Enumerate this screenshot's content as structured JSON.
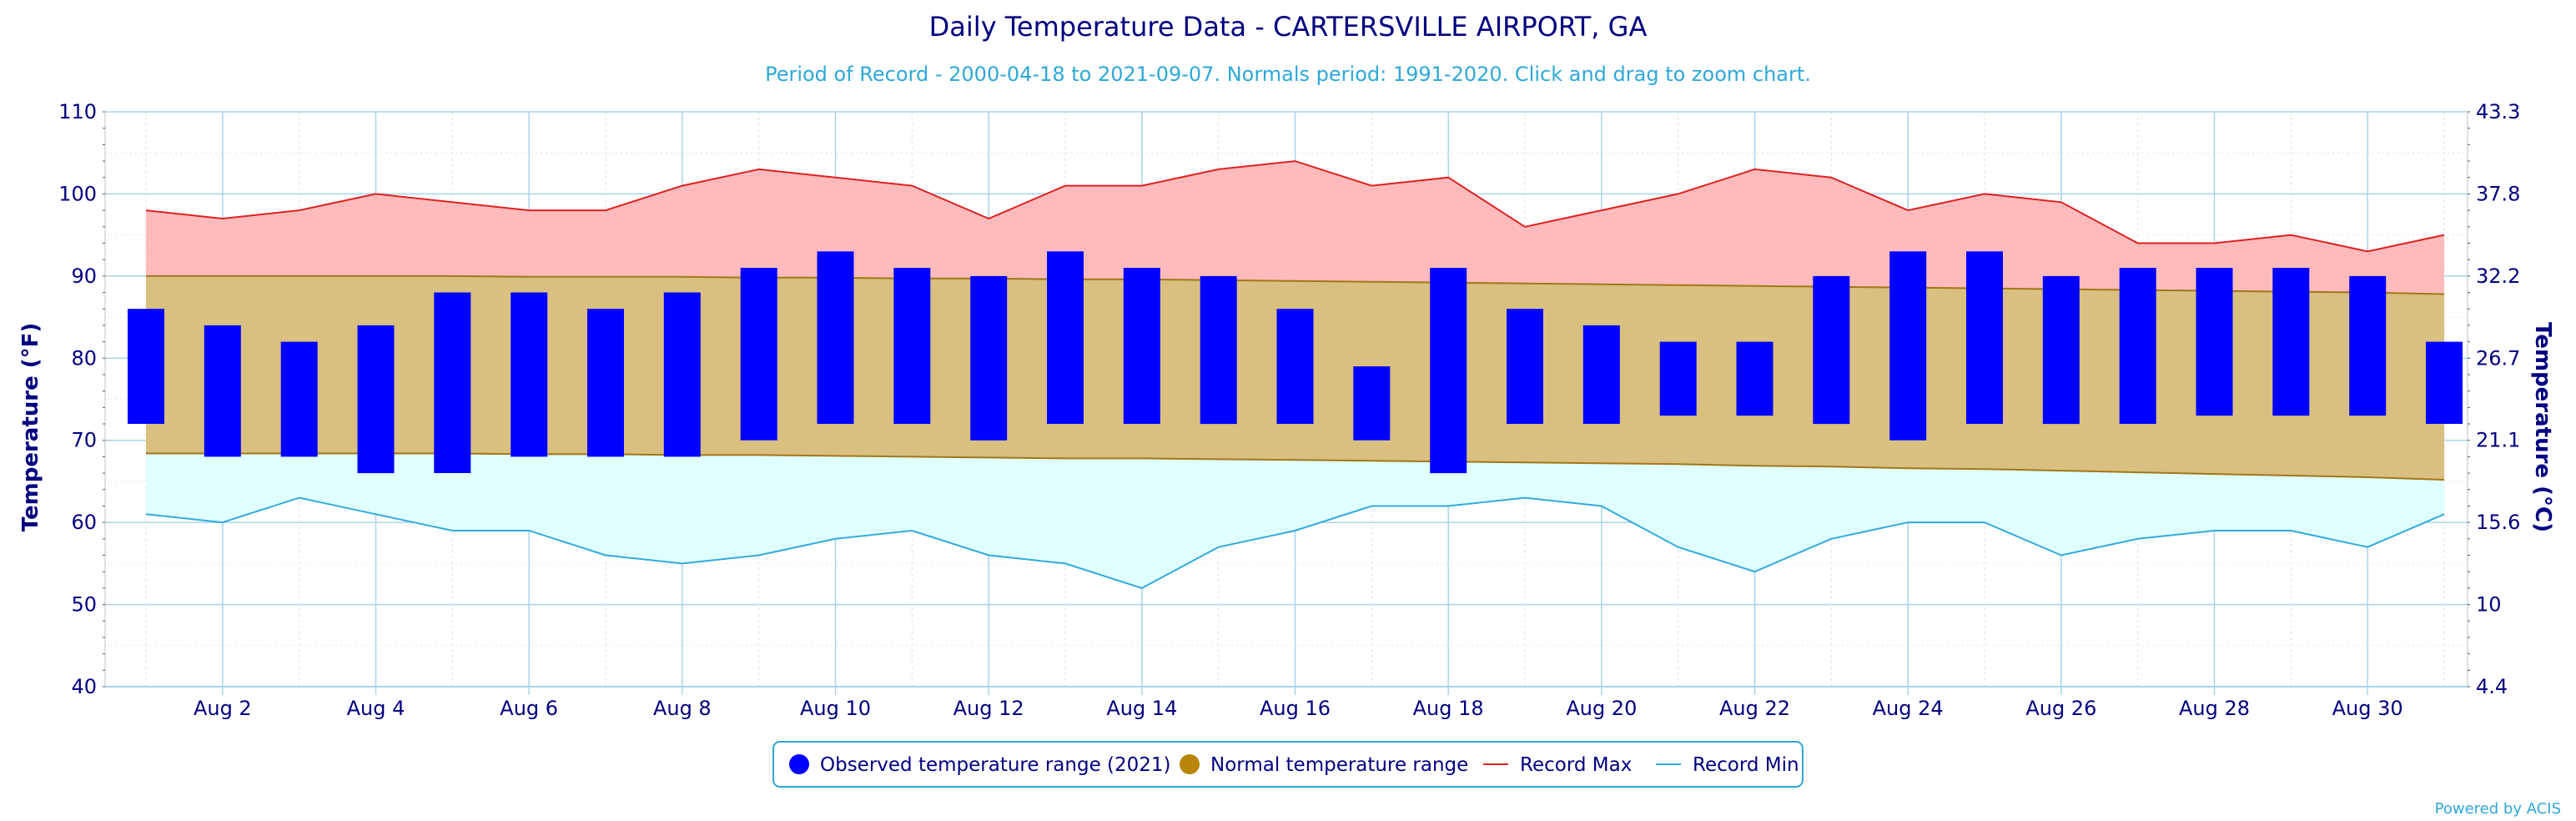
{
  "chart_data": {
    "type": "bar",
    "title": "Daily Temperature Data - CARTERSVILLE AIRPORT, GA",
    "subtitle": "Period of Record - 2000-04-18 to 2021-09-07. Normals period: 1991-2020. Click and drag to zoom chart.",
    "ylabel_left": "Temperature (°F)",
    "ylabel_right": "Temperature (°C)",
    "ylim": [
      40,
      110
    ],
    "y_ticks": [
      40,
      50,
      60,
      70,
      80,
      90,
      100,
      110
    ],
    "y_ticks_right": [
      "4.4",
      "10",
      "15.6",
      "21.1",
      "26.7",
      "32.2",
      "37.8",
      "43.3"
    ],
    "x_days": [
      1,
      31
    ],
    "x_ticks": [
      {
        "day": 2,
        "label": "Aug 2"
      },
      {
        "day": 4,
        "label": "Aug 4"
      },
      {
        "day": 6,
        "label": "Aug 6"
      },
      {
        "day": 8,
        "label": "Aug 8"
      },
      {
        "day": 10,
        "label": "Aug 10"
      },
      {
        "day": 12,
        "label": "Aug 12"
      },
      {
        "day": 14,
        "label": "Aug 14"
      },
      {
        "day": 16,
        "label": "Aug 16"
      },
      {
        "day": 18,
        "label": "Aug 18"
      },
      {
        "day": 20,
        "label": "Aug 20"
      },
      {
        "day": 22,
        "label": "Aug 22"
      },
      {
        "day": 24,
        "label": "Aug 24"
      },
      {
        "day": 26,
        "label": "Aug 26"
      },
      {
        "day": 28,
        "label": "Aug 28"
      },
      {
        "day": 30,
        "label": "Aug 30"
      }
    ],
    "observed_high": [
      86,
      84,
      82,
      84,
      88,
      88,
      86,
      88,
      91,
      93,
      91,
      90,
      93,
      91,
      90,
      86,
      79,
      91,
      86,
      84,
      82,
      82,
      90,
      93,
      93,
      90,
      91,
      91,
      91,
      90,
      82
    ],
    "observed_low": [
      72,
      68,
      68,
      66,
      66,
      68,
      68,
      68,
      70,
      72,
      72,
      70,
      72,
      72,
      72,
      72,
      70,
      66,
      72,
      72,
      73,
      73,
      72,
      70,
      72,
      72,
      72,
      73,
      73,
      73,
      72
    ],
    "normal_high": [
      90.0,
      90.0,
      90.0,
      90.0,
      90.0,
      89.9,
      89.9,
      89.9,
      89.8,
      89.8,
      89.7,
      89.7,
      89.6,
      89.6,
      89.5,
      89.4,
      89.3,
      89.2,
      89.1,
      89.0,
      88.9,
      88.8,
      88.7,
      88.6,
      88.5,
      88.4,
      88.3,
      88.2,
      88.1,
      88.0,
      87.8
    ],
    "normal_low": [
      68.4,
      68.4,
      68.4,
      68.4,
      68.4,
      68.3,
      68.3,
      68.2,
      68.2,
      68.1,
      68.0,
      67.9,
      67.8,
      67.8,
      67.7,
      67.6,
      67.5,
      67.4,
      67.3,
      67.2,
      67.1,
      66.9,
      66.8,
      66.6,
      66.5,
      66.3,
      66.1,
      65.9,
      65.7,
      65.5,
      65.2
    ],
    "record_max": [
      98,
      97,
      98,
      100,
      99,
      98,
      98,
      101,
      103,
      102,
      101,
      97,
      101,
      101,
      103,
      104,
      101,
      102,
      96,
      98,
      100,
      103,
      102,
      98,
      100,
      99,
      94,
      94,
      95,
      93,
      95
    ],
    "record_min": [
      61,
      60,
      63,
      61,
      59,
      59,
      56,
      55,
      56,
      58,
      59,
      56,
      55,
      52,
      57,
      59,
      62,
      62,
      63,
      62,
      57,
      54,
      58,
      60,
      60,
      56,
      58,
      59,
      59,
      57,
      61
    ],
    "legend": [
      {
        "label": "Observed temperature range (2021)",
        "color": "#0000ff",
        "symbol": "circle"
      },
      {
        "label": "Normal temperature range",
        "color": "#b8860b",
        "symbol": "circle"
      },
      {
        "label": "Record Max",
        "color": "#dd2222",
        "symbol": "line"
      },
      {
        "label": "Record Min",
        "color": "#33aadd",
        "symbol": "line"
      }
    ],
    "legend_position": "bottom-center",
    "grid": true,
    "colors": {
      "observed": "#0000ff",
      "normal_fill": "#d9bf80",
      "normal_line": "#a0781a",
      "record_max_fill": "#ffbbbb",
      "record_max_line": "#dd2222",
      "record_min_fill": "#e0ffff",
      "record_min_line": "#33aadd",
      "grid": "#a8d4ec",
      "text": "#000080"
    }
  },
  "credit": "Powered by ACIS"
}
